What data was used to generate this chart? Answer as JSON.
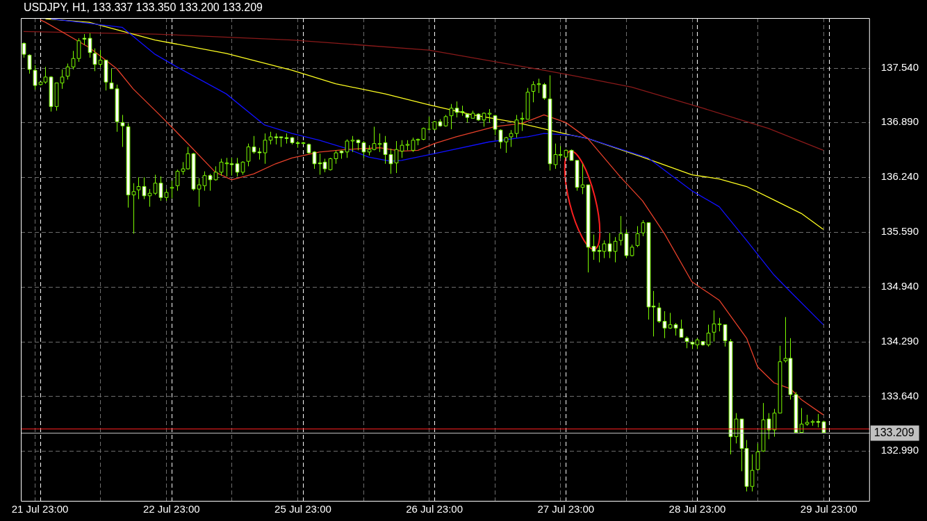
{
  "chart_data": {
    "type": "candlestick",
    "title": "USDJPY, H1, 133.337 133.350 133.200 133.209",
    "colors": [
      "#ffffff",
      "#ffffff",
      "#ffffff",
      "#000000",
      "#000000",
      "#ffffff",
      "#000000",
      "#000000",
      "#000000",
      "#000000",
      "#000000",
      "#ffffff",
      "#ffffff",
      "#ffffff",
      "#000000",
      "#ffffff",
      "#ffffff",
      "#ffffff",
      "#ffffff",
      "#ffffff",
      "#000000",
      "#000000",
      "#ffffff",
      "#000000",
      "#000000",
      "#ffffff",
      "#000000",
      "#000000",
      "#000000",
      "#000000",
      "#000000",
      "#ffffff",
      "#000000",
      "#000000",
      "#ffffff",
      "#000000",
      "#000000",
      "#000000",
      "#ffffff",
      "#ffffff",
      "#000000",
      "#000000",
      "#ffffff",
      "#ffffff",
      "#000000",
      "#000000",
      "#ffffff",
      "#ffffff",
      "#ffffff",
      "#ffffff",
      "#ffffff",
      "#000000",
      "#ffffff",
      "#ffffff",
      "#ffffff",
      "#ffffff",
      "#000000",
      "#000000",
      "#ffffff",
      "#000000",
      "#000000",
      "#ffffff",
      "#ffffff",
      "#000000",
      "#000000",
      "#000000",
      "#ffffff",
      "#ffffff",
      "#000000",
      "#000000",
      "#000000",
      "#000000",
      "#000000",
      "#000000",
      "#7cfc00",
      "#000000",
      "#ffffff",
      "#000000",
      "#000000",
      "#ffffff",
      "#ffffff",
      "#ffffff",
      "#000000",
      "#ffffff",
      "#000000",
      "#000000",
      "#ffffff",
      "#ffffff",
      "#000000",
      "#000000",
      "#000000",
      "#000000",
      "#000000",
      "#000000",
      "#000000",
      "#ffffff",
      "#ffffff",
      "#000000",
      "#000000",
      "#000000",
      "#ffffff",
      "#ffffff",
      "#000000",
      "#ffffff",
      "#ffffff",
      "#ffffff",
      "#000000",
      "#ffffff",
      "#000000",
      "#000000",
      "#ffffff",
      "#000000",
      "#000000",
      "#000000",
      "#ffffff",
      "#ffffff",
      "#ffffff",
      "#ffffff",
      "#000000",
      "#ffffff",
      "#ffffff",
      "#ffffff",
      "#ffffff",
      "#000000",
      "#ffffff",
      "#000000",
      "#000000",
      "#000000",
      "#ffffff",
      "#ffffff",
      "#000000",
      "#ffffff",
      "#ffffff",
      "#000000",
      "#000000",
      "#000000",
      "#ffffff",
      "#000000",
      "#000000",
      "#000000",
      "#ffffff",
      "#ffffff",
      "#000000",
      "#000000",
      "#000000",
      "#ffffff",
      "#ffffff",
      null,
      null,
      null,
      null,
      null,
      null,
      null,
      null
    ],
    "categories": [
      null,
      null,
      null,
      "21 Jul 23:00",
      null,
      null,
      null,
      null,
      null,
      null,
      null,
      null,
      null,
      null,
      null,
      null,
      null,
      null,
      null,
      null,
      null,
      null,
      null,
      null,
      null,
      null,
      null,
      "22 Jul 23:00",
      null,
      null,
      null,
      null,
      null,
      null,
      null,
      null,
      null,
      null,
      null,
      null,
      null,
      null,
      null,
      null,
      null,
      null,
      null,
      null,
      null,
      null,
      null,
      "25 Jul 23:00",
      null,
      null,
      null,
      null,
      null,
      null,
      null,
      null,
      null,
      null,
      null,
      null,
      null,
      null,
      null,
      null,
      null,
      null,
      null,
      null,
      null,
      null,
      null,
      "26 Jul 23:00",
      null,
      null,
      null,
      null,
      null,
      null,
      null,
      null,
      null,
      null,
      null,
      null,
      null,
      null,
      null,
      null,
      null,
      null,
      null,
      null,
      null,
      null,
      null,
      "27 Jul 23:00",
      null,
      null,
      null,
      null,
      null,
      null,
      null,
      null,
      null,
      null,
      null,
      null,
      null,
      null,
      null,
      null,
      null,
      null,
      null,
      null,
      null,
      null,
      null,
      "28 Jul 23:00",
      null,
      null,
      null,
      null,
      null,
      null,
      null,
      null,
      null,
      null,
      null,
      null,
      null,
      null,
      null,
      null,
      null,
      null,
      null,
      null,
      null,
      null,
      null,
      "29 Jul 23:00",
      null,
      null,
      null,
      null,
      null,
      null,
      null
    ],
    "ohlc": [
      [
        137.83,
        137.84,
        137.66,
        137.7
      ],
      [
        137.69,
        137.7,
        137.47,
        137.52
      ],
      [
        137.51,
        137.57,
        137.28,
        137.33
      ],
      [
        137.34,
        137.37,
        137.33,
        137.37
      ],
      [
        137.37,
        137.55,
        137.35,
        137.43
      ],
      [
        137.43,
        137.44,
        137.02,
        137.08
      ],
      [
        137.08,
        137.36,
        137.03,
        137.36
      ],
      [
        137.36,
        137.52,
        137.29,
        137.43
      ],
      [
        137.44,
        137.59,
        137.4,
        137.55
      ],
      [
        137.55,
        137.74,
        137.52,
        137.65
      ],
      [
        137.65,
        137.89,
        137.61,
        137.86
      ],
      [
        137.89,
        137.94,
        137.81,
        137.88
      ],
      [
        137.89,
        137.95,
        137.66,
        137.72
      ],
      [
        137.71,
        137.77,
        137.5,
        137.58
      ],
      [
        137.58,
        137.75,
        137.55,
        137.63
      ],
      [
        137.63,
        137.63,
        137.27,
        137.37
      ],
      [
        137.36,
        137.53,
        137.29,
        137.29
      ],
      [
        137.29,
        137.34,
        136.78,
        136.9
      ],
      [
        136.89,
        136.98,
        136.6,
        136.85
      ],
      [
        136.84,
        136.88,
        135.88,
        136.03
      ],
      [
        136.03,
        136.17,
        135.57,
        136.07
      ],
      [
        136.09,
        136.24,
        135.98,
        136.13
      ],
      [
        136.13,
        136.24,
        135.98,
        136.02
      ],
      [
        136.02,
        136.1,
        135.89,
        136.05
      ],
      [
        136.05,
        136.27,
        136.03,
        136.17
      ],
      [
        136.17,
        136.25,
        135.96,
        136.0
      ],
      [
        136.0,
        136.1,
        135.96,
        136.06
      ],
      [
        136.11,
        136.2,
        135.99,
        136.12
      ],
      [
        136.14,
        136.33,
        136.08,
        136.31
      ],
      [
        136.31,
        136.42,
        136.27,
        136.34
      ],
      [
        136.34,
        136.6,
        136.33,
        136.52
      ],
      [
        136.52,
        136.53,
        136.08,
        136.1
      ],
      [
        136.1,
        136.23,
        135.89,
        136.15
      ],
      [
        136.14,
        136.31,
        136.08,
        136.26
      ],
      [
        136.26,
        136.28,
        136.08,
        136.21
      ],
      [
        136.21,
        136.37,
        136.2,
        136.3
      ],
      [
        136.3,
        136.46,
        136.26,
        136.42
      ],
      [
        136.4,
        136.47,
        136.25,
        136.41
      ],
      [
        136.4,
        136.47,
        136.26,
        136.39
      ],
      [
        136.4,
        136.47,
        136.25,
        136.3
      ],
      [
        136.3,
        136.43,
        136.27,
        136.42
      ],
      [
        136.43,
        136.64,
        136.37,
        136.6
      ],
      [
        136.6,
        136.73,
        136.52,
        136.54
      ],
      [
        136.54,
        136.59,
        136.45,
        136.53
      ],
      [
        136.53,
        136.76,
        136.4,
        136.68
      ],
      [
        136.68,
        136.78,
        136.63,
        136.72
      ],
      [
        136.72,
        136.76,
        136.63,
        136.71
      ],
      [
        136.72,
        136.72,
        136.6,
        136.71
      ],
      [
        136.71,
        136.76,
        136.64,
        136.7
      ],
      [
        136.71,
        136.72,
        136.63,
        136.65
      ],
      [
        136.65,
        136.67,
        136.59,
        136.64
      ],
      [
        136.64,
        136.66,
        136.63,
        136.65
      ],
      [
        136.63,
        136.64,
        136.52,
        136.53
      ],
      [
        136.54,
        136.55,
        136.34,
        136.4
      ],
      [
        136.41,
        136.52,
        136.27,
        136.4
      ],
      [
        136.42,
        136.46,
        136.3,
        136.34
      ],
      [
        136.33,
        136.47,
        136.32,
        136.46
      ],
      [
        136.46,
        136.56,
        136.4,
        136.53
      ],
      [
        136.55,
        136.56,
        136.46,
        136.53
      ],
      [
        136.54,
        136.69,
        136.47,
        136.67
      ],
      [
        136.67,
        136.73,
        136.54,
        136.68
      ],
      [
        136.68,
        136.69,
        136.56,
        136.65
      ],
      [
        136.65,
        136.67,
        136.47,
        136.54
      ],
      [
        136.54,
        136.62,
        136.5,
        136.57
      ],
      [
        136.57,
        136.84,
        136.56,
        136.64
      ],
      [
        136.63,
        136.76,
        136.54,
        136.64
      ],
      [
        136.65,
        136.73,
        136.4,
        136.51
      ],
      [
        136.51,
        136.58,
        136.28,
        136.4
      ],
      [
        136.41,
        136.67,
        136.29,
        136.57
      ],
      [
        136.55,
        136.68,
        136.47,
        136.62
      ],
      [
        136.62,
        136.68,
        136.56,
        136.63
      ],
      [
        136.56,
        136.71,
        136.54,
        136.68
      ],
      [
        136.68,
        136.7,
        136.62,
        136.69
      ],
      [
        136.69,
        136.83,
        136.68,
        136.82
      ],
      [
        136.81,
        136.96,
        136.8,
        136.81
      ],
      [
        136.81,
        136.91,
        136.8,
        136.9
      ],
      [
        136.9,
        136.93,
        136.84,
        136.85
      ],
      [
        136.85,
        136.98,
        136.84,
        136.96
      ],
      [
        136.97,
        137.11,
        136.81,
        137.06
      ],
      [
        137.06,
        137.14,
        136.95,
        137.01
      ],
      [
        137.02,
        137.09,
        136.97,
        137.01
      ],
      [
        136.99,
        137.0,
        136.89,
        136.95
      ],
      [
        136.94,
        137.03,
        136.94,
        137.0
      ],
      [
        136.99,
        137.0,
        136.91,
        136.92
      ],
      [
        136.92,
        137.01,
        136.84,
        137.0
      ],
      [
        136.99,
        137.05,
        136.89,
        137.0
      ],
      [
        136.97,
        136.98,
        136.74,
        136.81
      ],
      [
        136.8,
        136.81,
        136.58,
        136.66
      ],
      [
        136.66,
        136.72,
        136.53,
        136.71
      ],
      [
        136.72,
        136.8,
        136.6,
        136.76
      ],
      [
        136.76,
        136.98,
        136.71,
        136.92
      ],
      [
        136.93,
        137.01,
        136.79,
        136.94
      ],
      [
        136.93,
        137.3,
        136.93,
        137.25
      ],
      [
        137.26,
        137.38,
        137.13,
        137.34
      ],
      [
        137.34,
        137.41,
        137.24,
        137.35
      ],
      [
        137.34,
        137.36,
        137.16,
        137.18
      ],
      [
        137.17,
        137.45,
        136.32,
        136.4
      ],
      [
        136.39,
        136.64,
        136.34,
        136.51
      ],
      [
        136.5,
        136.61,
        136.47,
        136.51
      ],
      [
        136.48,
        136.57,
        136.47,
        136.56
      ],
      [
        136.56,
        136.57,
        136.44,
        136.44
      ],
      [
        136.44,
        136.44,
        136.08,
        136.12
      ],
      [
        136.12,
        136.4,
        136.04,
        136.15
      ],
      [
        136.15,
        136.15,
        135.11,
        135.41
      ],
      [
        135.42,
        135.56,
        135.26,
        135.36
      ],
      [
        135.37,
        135.43,
        135.23,
        135.36
      ],
      [
        135.36,
        135.49,
        135.28,
        135.45
      ],
      [
        135.45,
        135.58,
        135.28,
        135.36
      ],
      [
        135.36,
        135.53,
        135.23,
        135.48
      ],
      [
        135.49,
        135.78,
        135.43,
        135.57
      ],
      [
        135.57,
        135.62,
        135.28,
        135.31
      ],
      [
        135.31,
        135.44,
        135.3,
        135.41
      ],
      [
        135.43,
        135.66,
        135.41,
        135.57
      ],
      [
        135.58,
        135.73,
        135.54,
        135.7
      ],
      [
        135.7,
        135.7,
        134.55,
        134.7
      ],
      [
        134.71,
        134.89,
        134.35,
        134.7
      ],
      [
        134.69,
        134.75,
        134.51,
        134.53
      ],
      [
        134.53,
        134.65,
        134.33,
        134.45
      ],
      [
        134.45,
        134.63,
        134.44,
        134.49
      ],
      [
        134.49,
        134.51,
        134.36,
        134.45
      ],
      [
        134.44,
        134.55,
        134.34,
        134.34
      ],
      [
        134.33,
        134.35,
        134.21,
        134.29
      ],
      [
        134.28,
        134.29,
        134.2,
        134.26
      ],
      [
        134.25,
        134.33,
        134.2,
        134.31
      ],
      [
        134.29,
        134.29,
        134.24,
        134.25
      ],
      [
        134.25,
        134.49,
        134.23,
        134.39
      ],
      [
        134.4,
        134.66,
        134.29,
        134.5
      ],
      [
        134.49,
        134.57,
        134.41,
        134.5
      ],
      [
        134.49,
        134.49,
        134.23,
        134.3
      ],
      [
        134.29,
        134.32,
        132.95,
        133.16
      ],
      [
        133.16,
        133.44,
        133.08,
        133.37
      ],
      [
        133.37,
        133.37,
        132.75,
        133.02
      ],
      [
        133.02,
        133.12,
        132.51,
        132.57
      ],
      [
        132.57,
        132.95,
        132.51,
        132.76
      ],
      [
        132.77,
        133.08,
        132.76,
        132.98
      ],
      [
        132.99,
        133.56,
        132.98,
        133.36
      ],
      [
        133.37,
        133.44,
        133.13,
        133.24
      ],
      [
        133.24,
        133.49,
        133.16,
        133.44
      ],
      [
        133.44,
        134.24,
        133.44,
        134.05
      ],
      [
        134.06,
        134.58,
        134.04,
        134.09
      ],
      [
        134.09,
        134.33,
        133.6,
        133.66
      ],
      [
        133.66,
        133.69,
        133.21,
        133.21
      ],
      [
        133.21,
        133.5,
        133.21,
        133.31
      ],
      [
        133.31,
        133.42,
        133.29,
        133.33
      ],
      [
        133.33,
        133.36,
        133.29,
        133.34
      ],
      [
        133.34,
        133.43,
        133.27,
        133.33
      ],
      [
        133.337,
        133.35,
        133.2,
        133.209
      ],
      null,
      null,
      null,
      null,
      null,
      null,
      null,
      null
    ],
    "series": [
      {
        "type": "line",
        "color": "#e8402a",
        "values": [
          null,
          null,
          null,
          138.11,
          138.08,
          null,
          null,
          null,
          null,
          null,
          null,
          null,
          137.78,
          null,
          null,
          null,
          null,
          137.53,
          null,
          null,
          137.29,
          null,
          null,
          null,
          null,
          136.97,
          null,
          null,
          null,
          null,
          136.64,
          null,
          null,
          null,
          null,
          136.3,
          null,
          null,
          136.21,
          null,
          null,
          null,
          136.28,
          null,
          null,
          null,
          136.4,
          null,
          null,
          136.47,
          null,
          null,
          null,
          null,
          136.54,
          null,
          null,
          null,
          null,
          136.57,
          null,
          null,
          null,
          null,
          null,
          136.59,
          null,
          null,
          null,
          136.55,
          null,
          null,
          136.56,
          null,
          null,
          136.64,
          null,
          null,
          null,
          136.72,
          null,
          null,
          null,
          null,
          null,
          null,
          136.84,
          null,
          null,
          null,
          null,
          136.88,
          null,
          null,
          null,
          136.98,
          null,
          null,
          null,
          136.89,
          null,
          null,
          null,
          136.7,
          null,
          null,
          null,
          null,
          null,
          136.24,
          null,
          null,
          null,
          135.96,
          null,
          null,
          null,
          135.57,
          null,
          null,
          null,
          null,
          135.0,
          null,
          null,
          null,
          null,
          134.78,
          null,
          null,
          null,
          null,
          134.33,
          null,
          133.99,
          null,
          null,
          133.8,
          null,
          null,
          133.73,
          null,
          133.6,
          null,
          null,
          null,
          133.42,
          null,
          null,
          null,
          null,
          null,
          null,
          null,
          null
        ]
      },
      {
        "type": "line",
        "color": "#1010ff",
        "values": [
          null,
          null,
          null,
          null,
          null,
          138.12,
          null,
          null,
          null,
          null,
          null,
          null,
          null,
          null,
          null,
          null,
          null,
          null,
          138.02,
          null,
          null,
          null,
          null,
          null,
          137.7,
          null,
          null,
          null,
          137.55,
          null,
          null,
          null,
          null,
          null,
          null,
          null,
          null,
          137.23,
          null,
          null,
          null,
          null,
          null,
          null,
          136.86,
          null,
          null,
          null,
          null,
          136.76,
          null,
          null,
          null,
          null,
          136.68,
          null,
          null,
          null,
          null,
          136.58,
          null,
          null,
          null,
          136.48,
          null,
          null,
          null,
          136.43,
          null,
          136.44,
          null,
          null,
          null,
          null,
          null,
          136.52,
          null,
          null,
          null,
          null,
          null,
          null,
          null,
          null,
          null,
          136.66,
          null,
          null,
          null,
          null,
          null,
          null,
          136.72,
          null,
          null,
          136.76,
          null,
          null,
          null,
          null,
          136.74,
          null,
          null,
          136.7,
          null,
          null,
          null,
          null,
          null,
          null,
          null,
          null,
          null,
          null,
          136.47,
          null,
          null,
          null,
          null,
          null,
          null,
          null,
          136.08,
          null,
          null,
          null,
          null,
          135.89,
          null,
          null,
          null,
          null,
          135.49,
          null,
          null,
          null,
          null,
          135.08,
          null,
          null,
          134.88,
          null,
          null,
          null,
          null,
          null,
          134.49,
          null,
          null,
          null,
          null,
          null,
          null,
          null,
          null
        ]
      },
      {
        "type": "line",
        "color": "#ffff20",
        "values": [
          null,
          null,
          null,
          null,
          138.12,
          null,
          null,
          null,
          null,
          null,
          null,
          null,
          138.08,
          null,
          null,
          null,
          null,
          null,
          null,
          null,
          null,
          null,
          null,
          null,
          137.87,
          null,
          null,
          null,
          null,
          null,
          null,
          null,
          null,
          null,
          null,
          null,
          null,
          137.71,
          null,
          null,
          null,
          null,
          null,
          null,
          null,
          null,
          null,
          null,
          null,
          137.51,
          null,
          null,
          null,
          null,
          null,
          null,
          null,
          137.35,
          null,
          null,
          null,
          null,
          null,
          null,
          null,
          null,
          137.23,
          null,
          null,
          null,
          null,
          null,
          null,
          null,
          137.1,
          null,
          null,
          null,
          null,
          null,
          null,
          null,
          136.98,
          null,
          null,
          null,
          null,
          null,
          null,
          null,
          136.89,
          null,
          null,
          null,
          null,
          null,
          null,
          null,
          null,
          null,
          136.74,
          null,
          null,
          136.7,
          null,
          null,
          null,
          null,
          null,
          null,
          null,
          null,
          null,
          136.48,
          null,
          null,
          null,
          null,
          null,
          null,
          null,
          null,
          136.27,
          null,
          null,
          null,
          null,
          136.22,
          null,
          null,
          null,
          null,
          136.13,
          null,
          null,
          null,
          null,
          135.97,
          null,
          null,
          null,
          null,
          135.81,
          null,
          null,
          null,
          135.62,
          null,
          null,
          null,
          null,
          null,
          null,
          null,
          null
        ]
      },
      {
        "type": "line",
        "color": "#8b1a1a",
        "values": [
          137.97,
          null,
          null,
          null,
          null,
          null,
          null,
          null,
          null,
          null,
          null,
          null,
          null,
          null,
          null,
          null,
          null,
          null,
          null,
          null,
          null,
          null,
          null,
          null,
          137.94,
          null,
          null,
          null,
          null,
          null,
          null,
          null,
          null,
          null,
          null,
          null,
          null,
          null,
          null,
          null,
          null,
          null,
          null,
          null,
          null,
          null,
          null,
          null,
          null,
          137.87,
          null,
          null,
          null,
          null,
          null,
          null,
          null,
          null,
          null,
          null,
          null,
          null,
          null,
          null,
          null,
          null,
          null,
          null,
          null,
          null,
          null,
          null,
          null,
          null,
          137.75,
          null,
          null,
          null,
          null,
          null,
          null,
          null,
          null,
          null,
          null,
          null,
          null,
          null,
          null,
          null,
          null,
          null,
          null,
          null,
          null,
          137.51,
          null,
          null,
          null,
          null,
          137.45,
          null,
          null,
          null,
          null,
          null,
          null,
          null,
          null,
          null,
          null,
          137.31,
          null,
          null,
          null,
          null,
          null,
          null,
          null,
          null,
          null,
          null,
          null,
          null,
          137.06,
          null,
          null,
          null,
          null,
          null,
          null,
          null,
          null,
          null,
          null,
          null,
          136.82,
          null,
          null,
          null,
          null,
          null,
          null,
          null,
          null,
          null,
          136.56,
          null,
          null,
          null,
          null,
          null,
          null,
          null,
          null
        ]
      }
    ],
    "ylim": [
      132.39,
      138.13
    ],
    "yticks": [
      {
        "value": 132.99,
        "label": "132.990"
      },
      {
        "value": 133.64,
        "label": "133.640"
      },
      {
        "value": 134.29,
        "label": "134.290"
      },
      {
        "value": 134.94,
        "label": "134.940"
      },
      {
        "value": 135.59,
        "label": "135.590"
      },
      {
        "value": 136.24,
        "label": "136.240"
      },
      {
        "value": 136.89,
        "label": "136.890"
      },
      {
        "value": 137.54,
        "label": "137.540"
      }
    ],
    "grid": true,
    "ref_lines": [
      {
        "axis": "y",
        "value": 133.26,
        "color": "#ff2020"
      },
      {
        "axis": "y",
        "value": 133.209,
        "label": "133.209",
        "color": "#c0c0c0"
      }
    ]
  }
}
